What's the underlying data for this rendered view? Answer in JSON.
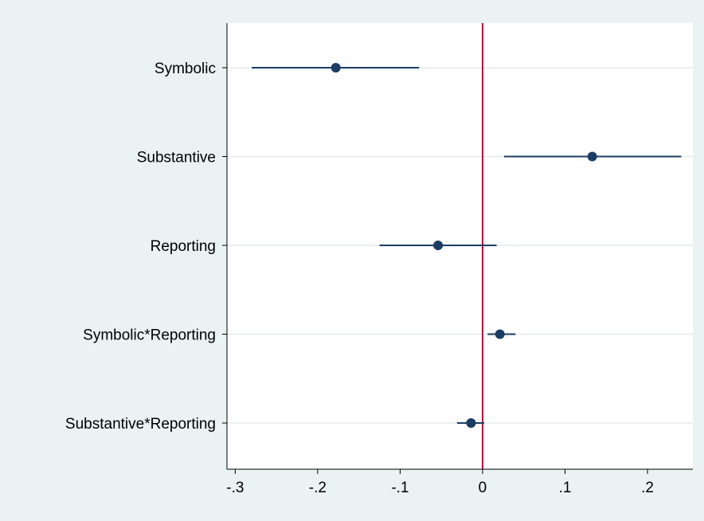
{
  "chart_data": {
    "type": "coefficient-plot",
    "title": "",
    "xlabel": "",
    "ylabel": "",
    "xlim": [
      -0.31,
      0.255
    ],
    "xticks": [
      {
        "value": -0.3,
        "label": "-.3"
      },
      {
        "value": -0.2,
        "label": "-.2"
      },
      {
        "value": -0.1,
        "label": "-.1"
      },
      {
        "value": 0,
        "label": "0"
      },
      {
        "value": 0.1,
        "label": ".1"
      },
      {
        "value": 0.2,
        "label": ".2"
      }
    ],
    "reference_line": {
      "value": 0,
      "color": "#b0103a"
    },
    "grid": {
      "horizontal": true,
      "vertical": false
    },
    "colors": {
      "background": "#eaf2f3",
      "plot_area": "#ffffff",
      "marker": "#1b3d63",
      "ci_line": "#1b3d63",
      "grid": "#e3ecee"
    },
    "points": [
      {
        "label": "Symbolic",
        "estimate": -0.178,
        "ci_low": -0.28,
        "ci_high": -0.077
      },
      {
        "label": "Substantive",
        "estimate": 0.133,
        "ci_low": 0.026,
        "ci_high": 0.241
      },
      {
        "label": "Reporting",
        "estimate": -0.054,
        "ci_low": -0.125,
        "ci_high": 0.017
      },
      {
        "label": "Symbolic*Reporting",
        "estimate": 0.021,
        "ci_low": 0.006,
        "ci_high": 0.04
      },
      {
        "label": "Substantive*Reporting",
        "estimate": -0.014,
        "ci_low": -0.031,
        "ci_high": 0.002
      }
    ]
  }
}
